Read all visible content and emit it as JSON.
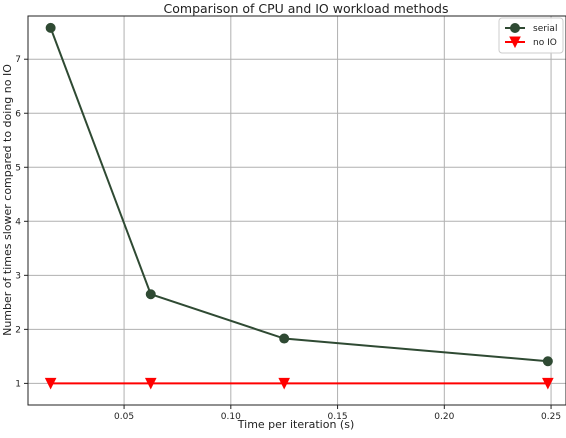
{
  "chart_data": {
    "type": "line",
    "title": "Comparison of CPU and IO workload methods",
    "xlabel": "Time per iteration (s)",
    "ylabel": "Number of times slower compared to doing no IO",
    "xlim": [
      0.005,
      0.257
    ],
    "ylim": [
      0.6,
      7.8
    ],
    "x_ticks": [
      0.05,
      0.1,
      0.15,
      0.2,
      0.25
    ],
    "x_tick_labels": [
      "0.05",
      "0.10",
      "0.15",
      "0.20",
      "0.25"
    ],
    "y_ticks": [
      1,
      2,
      3,
      4,
      5,
      6,
      7
    ],
    "y_tick_labels": [
      "1",
      "2",
      "3",
      "4",
      "5",
      "6",
      "7"
    ],
    "grid": true,
    "legend_position": "top-right",
    "series": [
      {
        "name": "serial",
        "color": "#2f4a33",
        "marker": "circle",
        "x": [
          0.0156,
          0.0625,
          0.125,
          0.2485
        ],
        "y": [
          7.58,
          2.65,
          1.83,
          1.41
        ]
      },
      {
        "name": "no IO",
        "color": "#ff0000",
        "marker": "triangle-down",
        "x": [
          0.0156,
          0.0625,
          0.125,
          0.2485
        ],
        "y": [
          1.0,
          1.0,
          1.0,
          1.0
        ]
      }
    ]
  }
}
